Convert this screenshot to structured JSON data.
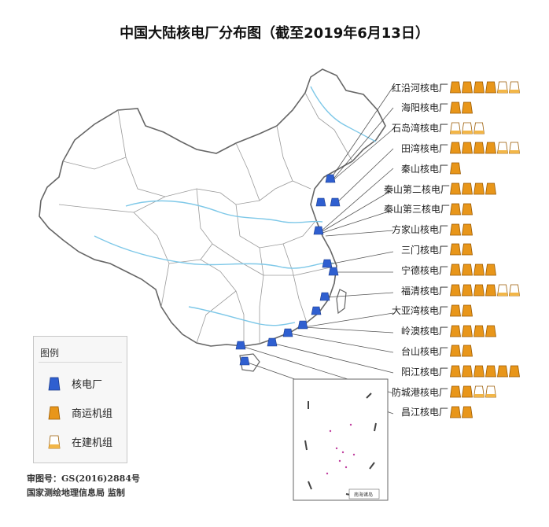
{
  "title": "中国大陆核电厂分布图（截至2019年6月13日）",
  "legend": {
    "title": "图例",
    "items": [
      {
        "label": "核电厂",
        "icon": "plant-icon"
      },
      {
        "label": "商运机组",
        "icon": "operating-unit-icon"
      },
      {
        "label": "在建机组",
        "icon": "construction-unit-icon"
      }
    ]
  },
  "footer": {
    "approval": "审图号：GS(2016)2884号",
    "supervisor": "国家测绘地理信息局  监制"
  },
  "inset": {
    "label": "南海诸岛"
  },
  "colors": {
    "plant": "#2f5fd0",
    "operating": "#e8961a",
    "construction": "#ffffff",
    "leader": "#555555",
    "boundary": "#777777",
    "river": "#7ec8e8"
  },
  "plants": [
    {
      "name": "红沿河核电厂",
      "operating": 4,
      "construction": 2
    },
    {
      "name": "海阳核电厂",
      "operating": 2,
      "construction": 0
    },
    {
      "name": "石岛湾核电厂",
      "operating": 0,
      "construction": 3
    },
    {
      "name": "田湾核电厂",
      "operating": 4,
      "construction": 2
    },
    {
      "name": "秦山核电厂",
      "operating": 1,
      "construction": 0
    },
    {
      "name": "秦山第二核电厂",
      "operating": 4,
      "construction": 0
    },
    {
      "name": "秦山第三核电厂",
      "operating": 2,
      "construction": 0
    },
    {
      "name": "方家山核电厂",
      "operating": 2,
      "construction": 0
    },
    {
      "name": "三门核电厂",
      "operating": 2,
      "construction": 0
    },
    {
      "name": "宁德核电厂",
      "operating": 4,
      "construction": 0
    },
    {
      "name": "福清核电厂",
      "operating": 4,
      "construction": 2
    },
    {
      "name": "大亚湾核电厂",
      "operating": 2,
      "construction": 0
    },
    {
      "name": "岭澳核电厂",
      "operating": 4,
      "construction": 0
    },
    {
      "name": "台山核电厂",
      "operating": 2,
      "construction": 0
    },
    {
      "name": "阳江核电厂",
      "operating": 6,
      "construction": 0
    },
    {
      "name": "防城港核电厂",
      "operating": 2,
      "construction": 2
    },
    {
      "name": "昌江核电厂",
      "operating": 2,
      "construction": 0
    }
  ]
}
